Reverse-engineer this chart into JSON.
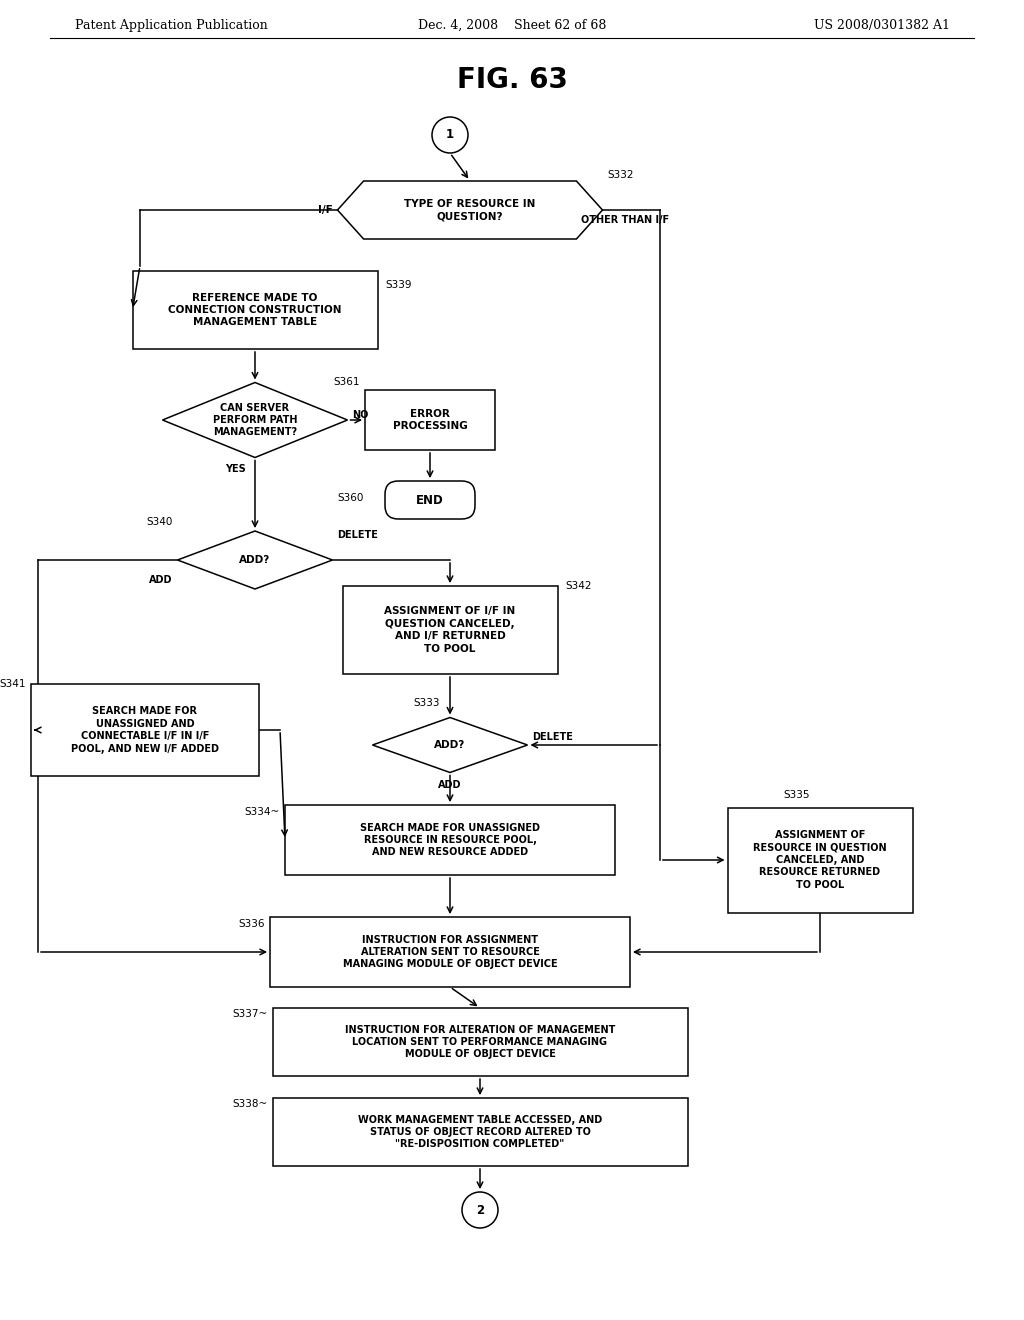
{
  "title": "FIG. 63",
  "header_left": "Patent Application Publication",
  "header_mid": "Dec. 4, 2008    Sheet 62 of 68",
  "header_right": "US 2008/0301382 A1",
  "bg_color": "#ffffff",
  "fig_width": 10.24,
  "fig_height": 13.2,
  "dpi": 100
}
